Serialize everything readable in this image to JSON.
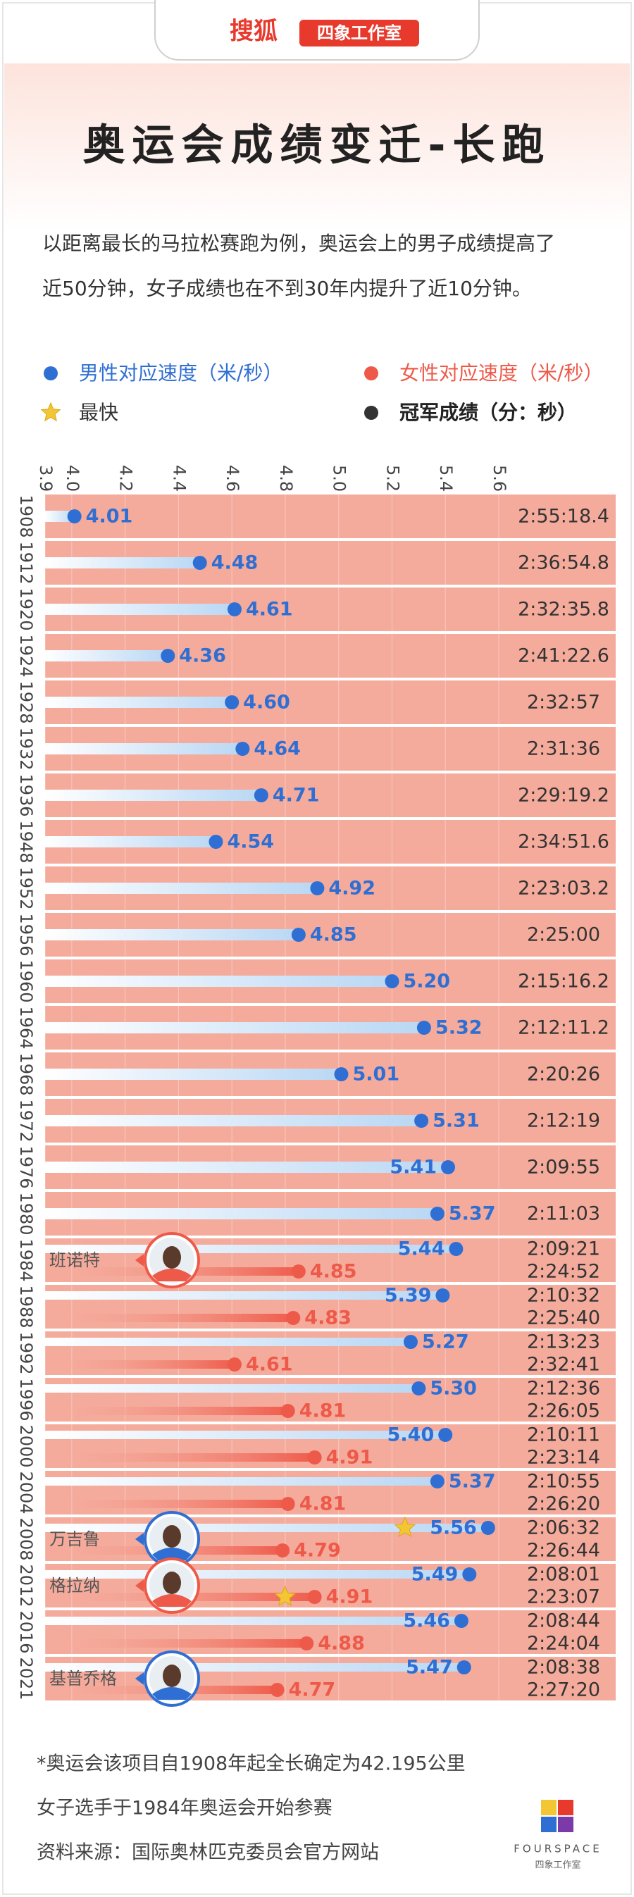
{
  "header": {
    "brand": "搜狐",
    "badge": "四象工作室"
  },
  "chart_data": {
    "type": "lollipop",
    "title": "奥运会成绩变迁-长跑",
    "subtitle": [
      "以距离最长的马拉松赛跑为例，奥运会上的男子成绩提高了",
      "近50分钟，女子成绩也在不到30年内提升了近10分钟。"
    ],
    "categories": [
      "1908",
      "1912",
      "1920",
      "1924",
      "1928",
      "1932",
      "1936",
      "1948",
      "1952",
      "1956",
      "1960",
      "1964",
      "1968",
      "1972",
      "1976",
      "1980",
      "1984",
      "1988",
      "1992",
      "1996",
      "2000",
      "2004",
      "2008",
      "2012",
      "2016",
      "2021"
    ],
    "xlim": [
      3.9,
      5.6
    ],
    "xticks": [
      3.9,
      {
        "value": 4,
        "label": "4.0"
      },
      4.2,
      4.4,
      4.6,
      4.8,
      {
        "value": 5,
        "label": "5.0"
      },
      5.2,
      5.4,
      5.6
    ],
    "series": [
      {
        "name": "男性对应速度（米/秒）",
        "color": "#2f6fd3",
        "values": [
          4.01,
          4.48,
          4.61,
          4.36,
          4.6,
          4.64,
          4.71,
          4.54,
          4.92,
          4.85,
          5.2,
          5.32,
          5.01,
          5.31,
          5.41,
          5.37,
          5.44,
          5.39,
          5.27,
          5.3,
          5.4,
          5.37,
          5.56,
          5.49,
          5.46,
          5.47
        ],
        "value_labels": [
          "4.01",
          "4.48",
          "4.61",
          "4.36",
          "4.60",
          "4.64",
          "4.71",
          "4.54",
          "4.92",
          "4.85",
          "5.20",
          "5.32",
          "5.01",
          "5.31",
          "5.41",
          "5.37",
          "5.44",
          "5.39",
          "5.27",
          "5.30",
          "5.40",
          "5.37",
          "5.56",
          "5.49",
          "5.46",
          "5.47"
        ],
        "fastest": "2008"
      },
      {
        "name": "女性对应速度（米/秒）",
        "color": "#ee5a4a",
        "values": [
          null,
          null,
          null,
          null,
          null,
          null,
          null,
          null,
          null,
          null,
          null,
          null,
          null,
          null,
          null,
          null,
          4.85,
          4.83,
          4.61,
          4.81,
          4.91,
          4.81,
          4.79,
          4.91,
          4.88,
          4.77
        ],
        "value_labels": [
          null,
          null,
          null,
          null,
          null,
          null,
          null,
          null,
          null,
          null,
          null,
          null,
          null,
          null,
          null,
          null,
          "4.85",
          "4.83",
          "4.61",
          "4.81",
          "4.91",
          "4.81",
          "4.79",
          "4.91",
          "4.88",
          "4.77"
        ],
        "fastest": "2012"
      }
    ],
    "legend_fastest": "最快",
    "champion_times": {
      "name": "冠军成绩（分：秒）",
      "men": [
        "2:55:18.4",
        "2:36:54.8",
        "2:32:35.8",
        "2:41:22.6",
        "2:32:57",
        "2:31:36",
        "2:29:19.2",
        "2:34:51.6",
        "2:23:03.2",
        "2:25:00",
        "2:15:16.2",
        "2:12:11.2",
        "2:20:26",
        "2:12:19",
        "2:09:55",
        "2:11:03",
        "2:09:21",
        "2:10:32",
        "2:13:23",
        "2:12:36",
        "2:10:11",
        "2:10:55",
        "2:06:32",
        "2:08:01",
        "2:08:44",
        "2:08:38"
      ],
      "women": [
        null,
        null,
        null,
        null,
        null,
        null,
        null,
        null,
        null,
        null,
        null,
        null,
        null,
        null,
        null,
        null,
        "2:24:52",
        "2:25:40",
        "2:32:41",
        "2:26:05",
        "2:23:14",
        "2:26:20",
        "2:26:44",
        "2:23:07",
        "2:24:04",
        "2:27:20"
      ]
    },
    "annotations": [
      {
        "text": "班诺特",
        "category": "1984",
        "series": 1
      },
      {
        "text": "万吉鲁",
        "category": "2008",
        "series": 0
      },
      {
        "text": "格拉纳",
        "category": "2012",
        "series": 1
      },
      {
        "text": "基普乔格",
        "category": "2021",
        "series": 0
      }
    ]
  },
  "footer": {
    "notes": [
      "*奥运会该项目自1908年起全长确定为42.195公里",
      "女子选手于1984年奥运会开始参赛",
      "资料来源：国际奥林匹克委员会官方网站"
    ],
    "logo": "FOURSPACE",
    "logo_sub": "四象工作室"
  }
}
